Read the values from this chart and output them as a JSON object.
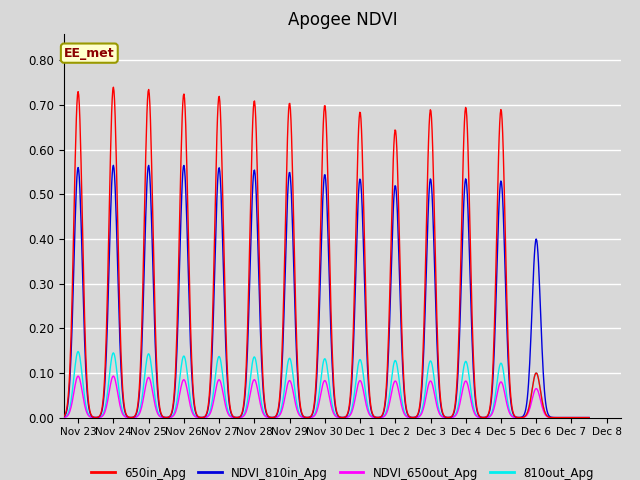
{
  "title": "Apogee NDVI",
  "title_fontsize": 12,
  "annotation_text": "EE_met",
  "xlim": [
    -0.4,
    15.4
  ],
  "ylim": [
    0.0,
    0.86
  ],
  "yticks": [
    0.0,
    0.1,
    0.2,
    0.3,
    0.4,
    0.5,
    0.6,
    0.7,
    0.8
  ],
  "x_tick_labels": [
    "Nov 23",
    "Nov 24",
    "Nov 25",
    "Nov 26",
    "Nov 27",
    "Nov 28",
    "Nov 29",
    "Nov 30",
    "Dec 1",
    "Dec 2",
    "Dec 3",
    "Dec 4",
    "Dec 5",
    "Dec 6",
    "Dec 7",
    "Dec 8"
  ],
  "x_tick_positions": [
    0,
    1,
    2,
    3,
    4,
    5,
    6,
    7,
    8,
    9,
    10,
    11,
    12,
    13,
    14,
    15
  ],
  "bg_color": "#d8d8d8",
  "plot_bg_color": "#d8d8d8",
  "grid_color": "#ffffff",
  "line_650in_color": "#ff0000",
  "line_810in_color": "#0000dd",
  "line_650out_color": "#ff00ff",
  "line_810out_color": "#00eeee",
  "legend_labels": [
    "650in_Apg",
    "NDVI_810in_Apg",
    "NDVI_650out_Apg",
    "810out_Apg"
  ],
  "legend_colors": [
    "#ff0000",
    "#0000dd",
    "#ff00ff",
    "#00eeee"
  ],
  "peaks_650in": [
    0.73,
    0.74,
    0.735,
    0.725,
    0.72,
    0.71,
    0.705,
    0.7,
    0.685,
    0.645,
    0.69,
    0.695,
    0.69,
    0.1,
    0.0
  ],
  "peaks_810in": [
    0.56,
    0.565,
    0.565,
    0.565,
    0.56,
    0.555,
    0.55,
    0.545,
    0.535,
    0.52,
    0.535,
    0.535,
    0.53,
    0.4,
    0.0
  ],
  "peaks_650out": [
    0.093,
    0.093,
    0.09,
    0.085,
    0.085,
    0.085,
    0.083,
    0.083,
    0.083,
    0.082,
    0.082,
    0.082,
    0.08,
    0.065,
    0.0
  ],
  "peaks_810out": [
    0.148,
    0.145,
    0.143,
    0.138,
    0.137,
    0.136,
    0.133,
    0.132,
    0.13,
    0.128,
    0.127,
    0.126,
    0.122,
    0.1,
    0.0
  ],
  "spike_sigma": 0.12,
  "n_points_per_spike": 60,
  "figsize": [
    6.4,
    4.8
  ],
  "dpi": 100
}
